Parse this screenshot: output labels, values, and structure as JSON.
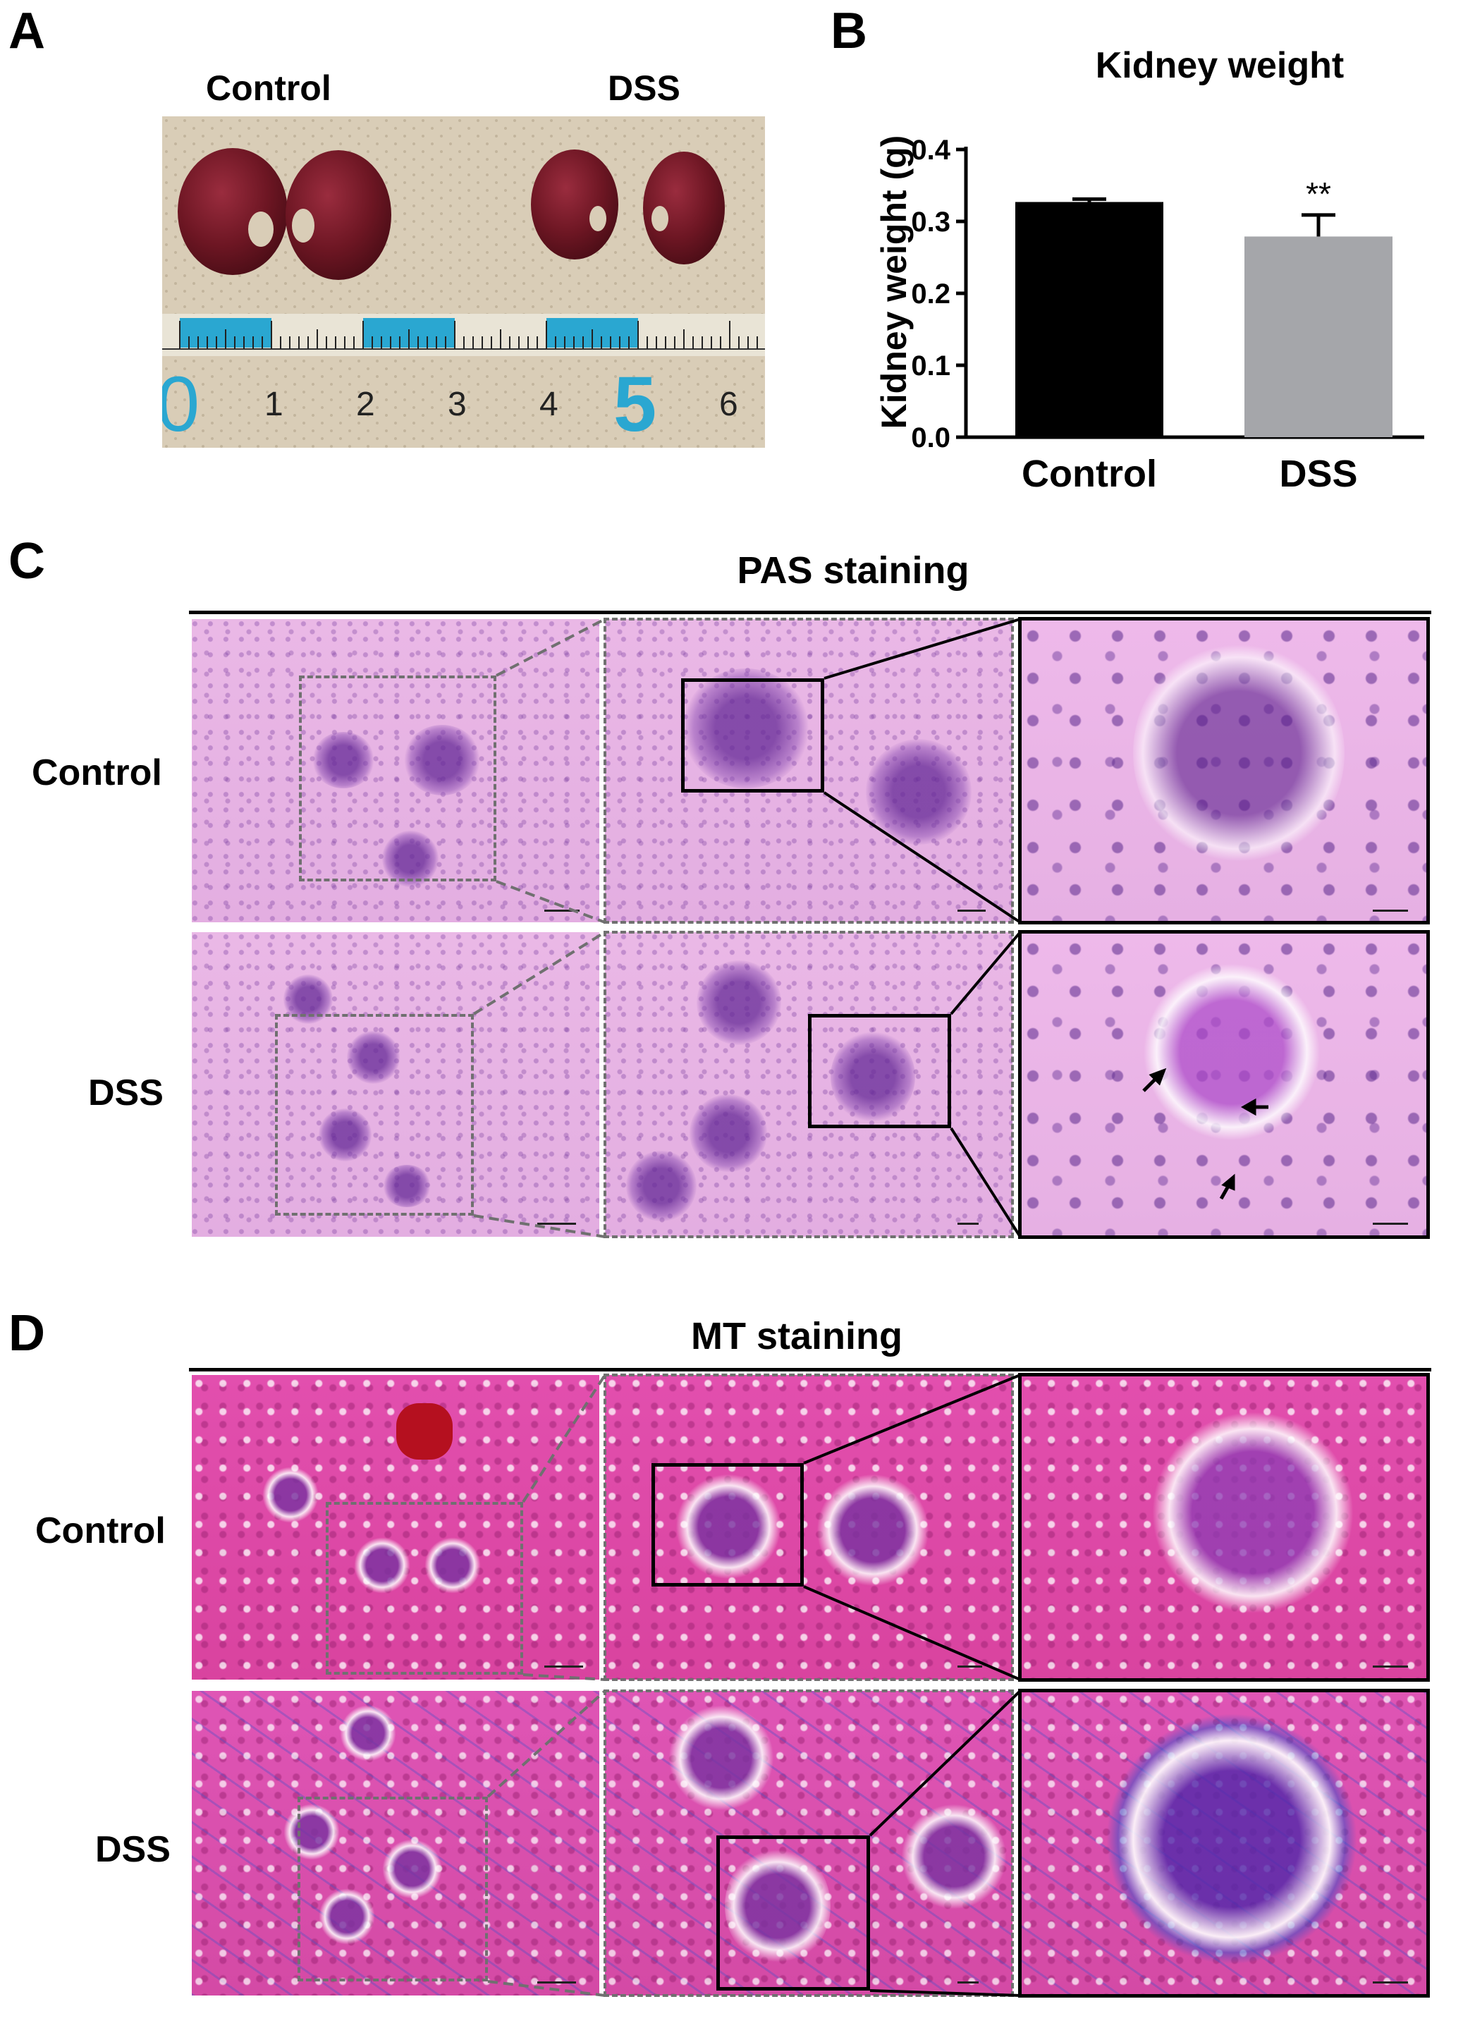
{
  "panels": {
    "A": {
      "letter": "A",
      "group_labels": [
        "Control",
        "DSS"
      ],
      "ruler_numbers": [
        "0",
        "1",
        "2",
        "3",
        "4",
        "5",
        "6"
      ]
    },
    "B": {
      "letter": "B"
    },
    "C": {
      "letter": "C",
      "title": "PAS staining",
      "row_labels": [
        "Control",
        "DSS"
      ]
    },
    "D": {
      "letter": "D",
      "title": "MT staining",
      "row_labels": [
        "Control",
        "DSS"
      ]
    }
  },
  "chart_data": {
    "type": "bar",
    "title": "Kidney weight",
    "ylabel": "Kidney weight (g)",
    "xlabel": "",
    "categories": [
      "Control",
      "DSS"
    ],
    "values": [
      0.327,
      0.279
    ],
    "errors": [
      0.004,
      0.03
    ],
    "significance": [
      "",
      "**"
    ],
    "bar_colors": [
      "#000000",
      "#a5a6aa"
    ],
    "ylim": [
      0,
      0.4
    ],
    "yticks": [
      "0.0",
      "0.1",
      "0.2",
      "0.3",
      "0.4"
    ]
  }
}
